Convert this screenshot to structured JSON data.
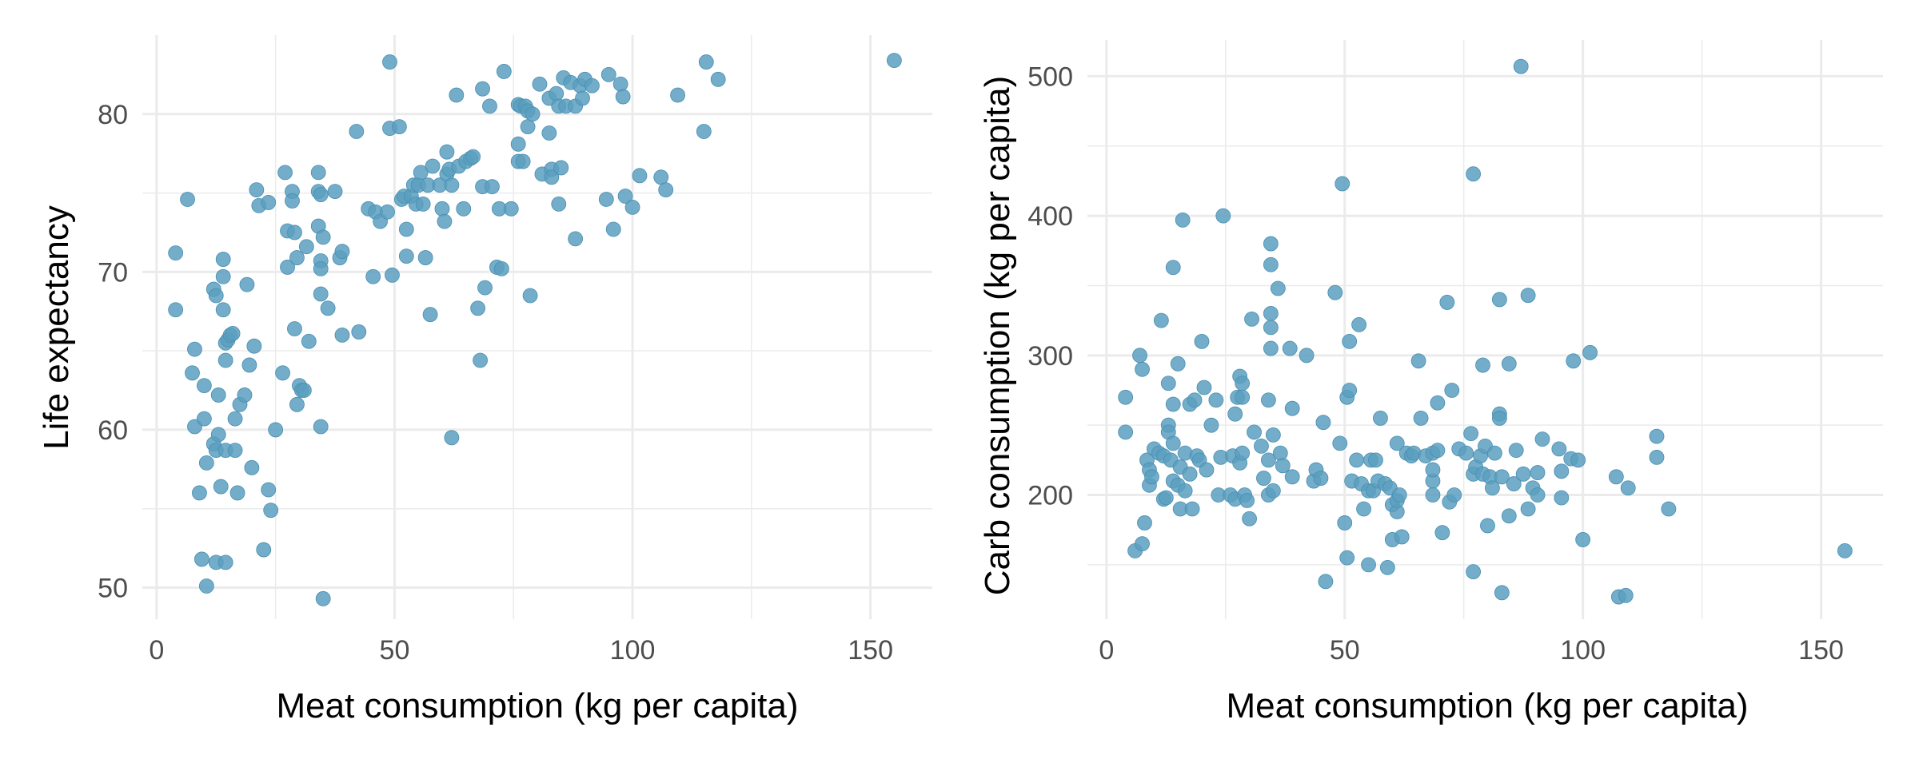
{
  "colors": {
    "point": "#5b9fbf",
    "grid": "#ebebeb",
    "tick_text": "#4d4d4d",
    "axis_title": "#000000"
  },
  "chart_data": [
    {
      "type": "scatter",
      "title": "",
      "xlabel": "Meat consumption (kg per capita)",
      "ylabel": "Life expectancy",
      "xlim": [
        -3,
        163
      ],
      "ylim": [
        48,
        85
      ],
      "xticks": [
        0,
        50,
        100,
        150
      ],
      "yticks": [
        50,
        60,
        70,
        80
      ],
      "grid": true,
      "points": [
        [
          4,
          71.2
        ],
        [
          4,
          67.6
        ],
        [
          6.5,
          74.6
        ],
        [
          8,
          65.1
        ],
        [
          7.5,
          63.6
        ],
        [
          8,
          60.2
        ],
        [
          9,
          56
        ],
        [
          10,
          62.8
        ],
        [
          10,
          60.7
        ],
        [
          9.5,
          51.8
        ],
        [
          10.5,
          57.9
        ],
        [
          10.5,
          50.1
        ],
        [
          12,
          68.9
        ],
        [
          12.5,
          68.5
        ],
        [
          12,
          59.1
        ],
        [
          12.5,
          58.7
        ],
        [
          12.5,
          51.6
        ],
        [
          13,
          62.2
        ],
        [
          13,
          59.7
        ],
        [
          13.5,
          56.4
        ],
        [
          14,
          70.8
        ],
        [
          14,
          69.7
        ],
        [
          14,
          67.6
        ],
        [
          14.5,
          65.5
        ],
        [
          14.5,
          64.4
        ],
        [
          14.5,
          58.7
        ],
        [
          14.5,
          51.6
        ],
        [
          15,
          65.7
        ],
        [
          15.5,
          66
        ],
        [
          16,
          66.1
        ],
        [
          16.5,
          60.7
        ],
        [
          16.5,
          58.7
        ],
        [
          17,
          56
        ],
        [
          17.5,
          61.6
        ],
        [
          18.5,
          62.2
        ],
        [
          19,
          69.2
        ],
        [
          19.5,
          64.1
        ],
        [
          20,
          57.6
        ],
        [
          20.5,
          65.3
        ],
        [
          21,
          75.2
        ],
        [
          21.5,
          74.2
        ],
        [
          22.5,
          52.4
        ],
        [
          23.5,
          74.4
        ],
        [
          23.5,
          56.2
        ],
        [
          24,
          54.9
        ],
        [
          25,
          60
        ],
        [
          26.5,
          63.6
        ],
        [
          27,
          76.3
        ],
        [
          27.5,
          70.3
        ],
        [
          27.5,
          72.6
        ],
        [
          28.5,
          75.1
        ],
        [
          28.5,
          74.5
        ],
        [
          29,
          72.5
        ],
        [
          29,
          66.4
        ],
        [
          29.5,
          61.6
        ],
        [
          29.5,
          70.9
        ],
        [
          30,
          62.8
        ],
        [
          30.5,
          62.5
        ],
        [
          31,
          62.5
        ],
        [
          31.5,
          71.6
        ],
        [
          32,
          65.6
        ],
        [
          34,
          76.3
        ],
        [
          34,
          75.1
        ],
        [
          34,
          72.9
        ],
        [
          34.5,
          74.9
        ],
        [
          34.5,
          70.7
        ],
        [
          34.5,
          70.2
        ],
        [
          34.5,
          68.6
        ],
        [
          34.5,
          60.2
        ],
        [
          35,
          49.3
        ],
        [
          35,
          72.2
        ],
        [
          36,
          67.7
        ],
        [
          37.5,
          75.1
        ],
        [
          38.5,
          70.9
        ],
        [
          39,
          71.3
        ],
        [
          39,
          66
        ],
        [
          42,
          78.9
        ],
        [
          42.5,
          66.2
        ],
        [
          44.5,
          74
        ],
        [
          45.5,
          69.7
        ],
        [
          46,
          73.8
        ],
        [
          47,
          73.2
        ],
        [
          48.5,
          73.8
        ],
        [
          49,
          83.3
        ],
        [
          49,
          79.1
        ],
        [
          49.5,
          69.8
        ],
        [
          51,
          79.2
        ],
        [
          51.5,
          74.6
        ],
        [
          52,
          74.8
        ],
        [
          52.5,
          72.7
        ],
        [
          52.5,
          71
        ],
        [
          53.5,
          74.8
        ],
        [
          54,
          75.5
        ],
        [
          54.5,
          74.3
        ],
        [
          55,
          75.5
        ],
        [
          55.5,
          76.3
        ],
        [
          56,
          74.3
        ],
        [
          56.5,
          70.9
        ],
        [
          57,
          75.5
        ],
        [
          57.5,
          67.3
        ],
        [
          58,
          76.7
        ],
        [
          59.5,
          75.5
        ],
        [
          60,
          74
        ],
        [
          60.5,
          73.2
        ],
        [
          61,
          77.6
        ],
        [
          61,
          76.2
        ],
        [
          61.5,
          76.5
        ],
        [
          62,
          59.5
        ],
        [
          62,
          75.5
        ],
        [
          63,
          81.2
        ],
        [
          63.5,
          76.7
        ],
        [
          64.5,
          74
        ],
        [
          65,
          77
        ],
        [
          66,
          77.2
        ],
        [
          66.5,
          77.3
        ],
        [
          67.5,
          67.7
        ],
        [
          68,
          64.4
        ],
        [
          68.5,
          81.6
        ],
        [
          68.5,
          75.4
        ],
        [
          69,
          69
        ],
        [
          70,
          80.5
        ],
        [
          70.5,
          75.4
        ],
        [
          71.5,
          70.3
        ],
        [
          72,
          74
        ],
        [
          72.5,
          70.2
        ],
        [
          73,
          82.7
        ],
        [
          74.5,
          74
        ],
        [
          76,
          77
        ],
        [
          76,
          78.1
        ],
        [
          76,
          80.6
        ],
        [
          76.5,
          80.5
        ],
        [
          77,
          77
        ],
        [
          77.5,
          80.5
        ],
        [
          78,
          80.2
        ],
        [
          78,
          79.2
        ],
        [
          78.5,
          68.5
        ],
        [
          79,
          80
        ],
        [
          80.5,
          81.9
        ],
        [
          81,
          76.2
        ],
        [
          82.5,
          78.8
        ],
        [
          82.5,
          81
        ],
        [
          83,
          76.5
        ],
        [
          83,
          76
        ],
        [
          84,
          81.3
        ],
        [
          84.5,
          74.3
        ],
        [
          84.5,
          80.5
        ],
        [
          85,
          76.6
        ],
        [
          85.5,
          82.3
        ],
        [
          86,
          80.5
        ],
        [
          87,
          82
        ],
        [
          88,
          80.5
        ],
        [
          88,
          72.1
        ],
        [
          89,
          81.8
        ],
        [
          89.5,
          81
        ],
        [
          90,
          82.2
        ],
        [
          91.5,
          81.8
        ],
        [
          94.5,
          74.6
        ],
        [
          95,
          82.5
        ],
        [
          96,
          72.7
        ],
        [
          97.5,
          81.9
        ],
        [
          98,
          81.1
        ],
        [
          98.5,
          74.8
        ],
        [
          100,
          74.1
        ],
        [
          101.5,
          76.1
        ],
        [
          106,
          76
        ],
        [
          107,
          75.2
        ],
        [
          109.5,
          81.2
        ],
        [
          115,
          78.9
        ],
        [
          115.5,
          83.3
        ],
        [
          118,
          82.2
        ],
        [
          155,
          83.4
        ]
      ]
    },
    {
      "type": "scatter",
      "title": "",
      "xlabel": "Meat consumption (kg per capita)",
      "ylabel": "Carb consumption (kg per capita)",
      "xlim": [
        -4,
        163
      ],
      "ylim": [
        111,
        526
      ],
      "xticks": [
        0,
        50,
        100,
        150
      ],
      "yticks": [
        200,
        300,
        400,
        500
      ],
      "grid": true,
      "points": [
        [
          4,
          270
        ],
        [
          4,
          245
        ],
        [
          6,
          160
        ],
        [
          7,
          300
        ],
        [
          7.5,
          290
        ],
        [
          7.5,
          165
        ],
        [
          8,
          180
        ],
        [
          8.5,
          225
        ],
        [
          9,
          207
        ],
        [
          9,
          218
        ],
        [
          9.5,
          213
        ],
        [
          10,
          233
        ],
        [
          11,
          230
        ],
        [
          11.5,
          325
        ],
        [
          12,
          197
        ],
        [
          12,
          228
        ],
        [
          12.5,
          198
        ],
        [
          13,
          280
        ],
        [
          13,
          250
        ],
        [
          13,
          245
        ],
        [
          13.5,
          225
        ],
        [
          14,
          265
        ],
        [
          14,
          237
        ],
        [
          14,
          210
        ],
        [
          14,
          363
        ],
        [
          15,
          294
        ],
        [
          15,
          207
        ],
        [
          15.5,
          220
        ],
        [
          15.5,
          190
        ],
        [
          16,
          397
        ],
        [
          16.5,
          203
        ],
        [
          16.5,
          230
        ],
        [
          17.5,
          215
        ],
        [
          17.5,
          265
        ],
        [
          18,
          190
        ],
        [
          18.5,
          268
        ],
        [
          19,
          228
        ],
        [
          19.5,
          225
        ],
        [
          20,
          310
        ],
        [
          20.5,
          277
        ],
        [
          21,
          218
        ],
        [
          22,
          250
        ],
        [
          23,
          268
        ],
        [
          23.5,
          200
        ],
        [
          24,
          227
        ],
        [
          24.5,
          400
        ],
        [
          26,
          200
        ],
        [
          26.5,
          228
        ],
        [
          27,
          258
        ],
        [
          27,
          197
        ],
        [
          27.5,
          270
        ],
        [
          28,
          285
        ],
        [
          28,
          223
        ],
        [
          28.5,
          230
        ],
        [
          28.5,
          280
        ],
        [
          28.5,
          270
        ],
        [
          29,
          200
        ],
        [
          29.5,
          196
        ],
        [
          30,
          183
        ],
        [
          30.5,
          326
        ],
        [
          31,
          245
        ],
        [
          32.5,
          235
        ],
        [
          33,
          212
        ],
        [
          34,
          268
        ],
        [
          34,
          225
        ],
        [
          34,
          200
        ],
        [
          34.5,
          380
        ],
        [
          34.5,
          365
        ],
        [
          34.5,
          330
        ],
        [
          34.5,
          320
        ],
        [
          34.5,
          305
        ],
        [
          35,
          243
        ],
        [
          35,
          203
        ],
        [
          36,
          348
        ],
        [
          36.5,
          230
        ],
        [
          37,
          221
        ],
        [
          38.5,
          305
        ],
        [
          39,
          213
        ],
        [
          39,
          262
        ],
        [
          42,
          300
        ],
        [
          43.5,
          210
        ],
        [
          44,
          218
        ],
        [
          45,
          212
        ],
        [
          45.5,
          252
        ],
        [
          46,
          138
        ],
        [
          48,
          345
        ],
        [
          49,
          237
        ],
        [
          49.5,
          423
        ],
        [
          50,
          180
        ],
        [
          50.5,
          155
        ],
        [
          50.5,
          270
        ],
        [
          51,
          310
        ],
        [
          51,
          275
        ],
        [
          51.5,
          210
        ],
        [
          52.5,
          225
        ],
        [
          53,
          322
        ],
        [
          53.5,
          208
        ],
        [
          54,
          190
        ],
        [
          55,
          150
        ],
        [
          55,
          203
        ],
        [
          55.5,
          225
        ],
        [
          56,
          203
        ],
        [
          56.5,
          225
        ],
        [
          57,
          210
        ],
        [
          57.5,
          255
        ],
        [
          58.5,
          208
        ],
        [
          59,
          148
        ],
        [
          59.5,
          205
        ],
        [
          60,
          193
        ],
        [
          60,
          168
        ],
        [
          61,
          237
        ],
        [
          61,
          188
        ],
        [
          61,
          196
        ],
        [
          61.5,
          200
        ],
        [
          62,
          170
        ],
        [
          63,
          230
        ],
        [
          64,
          228
        ],
        [
          64.5,
          230
        ],
        [
          65.5,
          296
        ],
        [
          66,
          255
        ],
        [
          67,
          228
        ],
        [
          68.5,
          210
        ],
        [
          68.5,
          218
        ],
        [
          68.5,
          200
        ],
        [
          68.5,
          230
        ],
        [
          69.5,
          232
        ],
        [
          69.5,
          266
        ],
        [
          70.5,
          173
        ],
        [
          71.5,
          338
        ],
        [
          72,
          195
        ],
        [
          72.5,
          275
        ],
        [
          73,
          200
        ],
        [
          74,
          233
        ],
        [
          75.5,
          230
        ],
        [
          76.5,
          244
        ],
        [
          77,
          215
        ],
        [
          77,
          145
        ],
        [
          77,
          430
        ],
        [
          77.5,
          220
        ],
        [
          78.5,
          228
        ],
        [
          79,
          215
        ],
        [
          79,
          293
        ],
        [
          79.5,
          235
        ],
        [
          80,
          178
        ],
        [
          80.5,
          213
        ],
        [
          81,
          205
        ],
        [
          81.5,
          230
        ],
        [
          82.5,
          258
        ],
        [
          82.5,
          255
        ],
        [
          82.5,
          340
        ],
        [
          83,
          130
        ],
        [
          83,
          213
        ],
        [
          84.5,
          185
        ],
        [
          84.5,
          294
        ],
        [
          85.5,
          208
        ],
        [
          86,
          232
        ],
        [
          87,
          507
        ],
        [
          87.5,
          215
        ],
        [
          88.5,
          190
        ],
        [
          88.5,
          343
        ],
        [
          89.5,
          205
        ],
        [
          90.5,
          200
        ],
        [
          90.5,
          216
        ],
        [
          91.5,
          240
        ],
        [
          95,
          233
        ],
        [
          95.5,
          198
        ],
        [
          95.5,
          217
        ],
        [
          97.5,
          226
        ],
        [
          98,
          296
        ],
        [
          99,
          225
        ],
        [
          100,
          168
        ],
        [
          101.5,
          302
        ],
        [
          107,
          213
        ],
        [
          107.5,
          127
        ],
        [
          109,
          128
        ],
        [
          109.5,
          205
        ],
        [
          115.5,
          242
        ],
        [
          115.5,
          227
        ],
        [
          118,
          190
        ],
        [
          155,
          160
        ]
      ]
    }
  ]
}
